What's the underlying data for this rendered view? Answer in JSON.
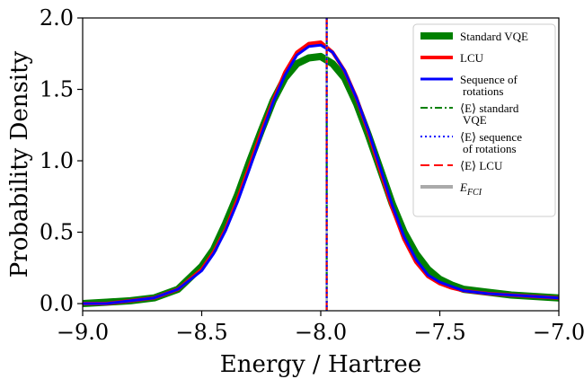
{
  "chart_data": {
    "type": "line",
    "title": "",
    "xlabel": "Energy / Hartree",
    "ylabel": "Probability Density",
    "xlim": [
      -9.0,
      -7.0
    ],
    "ylim": [
      -0.05,
      2.0
    ],
    "x_ticks": [
      -9.0,
      -8.5,
      -8.0,
      -7.5,
      -7.0
    ],
    "x_tick_labels": [
      "−9.0",
      "−8.5",
      "−8.0",
      "−7.5",
      "−7.0"
    ],
    "y_ticks": [
      0.0,
      0.5,
      1.0,
      1.5,
      2.0
    ],
    "y_tick_labels": [
      "0.0",
      "0.5",
      "1.0",
      "1.5",
      "2.0"
    ],
    "grid": false,
    "legend_position": "top-right",
    "x": [
      -9.0,
      -8.9,
      -8.8,
      -8.7,
      -8.6,
      -8.5,
      -8.45,
      -8.4,
      -8.35,
      -8.3,
      -8.25,
      -8.2,
      -8.15,
      -8.1,
      -8.05,
      -8.0,
      -7.95,
      -7.9,
      -7.85,
      -7.8,
      -7.75,
      -7.7,
      -7.65,
      -7.6,
      -7.55,
      -7.5,
      -7.45,
      -7.4,
      -7.3,
      -7.2,
      -7.1,
      -7.0
    ],
    "series": [
      {
        "name": "Standard VQE",
        "color": "#008000",
        "style": "solid",
        "values": [
          0.0,
          0.01,
          0.02,
          0.04,
          0.1,
          0.26,
          0.38,
          0.56,
          0.76,
          0.99,
          1.21,
          1.42,
          1.58,
          1.68,
          1.72,
          1.73,
          1.68,
          1.58,
          1.4,
          1.18,
          0.94,
          0.7,
          0.5,
          0.35,
          0.24,
          0.17,
          0.13,
          0.1,
          0.08,
          0.06,
          0.05,
          0.04
        ]
      },
      {
        "name": "LCU",
        "color": "#ff0000",
        "style": "solid",
        "values": [
          0.0,
          0.0,
          0.02,
          0.04,
          0.1,
          0.24,
          0.36,
          0.52,
          0.73,
          0.96,
          1.2,
          1.42,
          1.62,
          1.76,
          1.82,
          1.83,
          1.76,
          1.63,
          1.44,
          1.2,
          0.93,
          0.67,
          0.45,
          0.29,
          0.19,
          0.14,
          0.11,
          0.09,
          0.07,
          0.06,
          0.05,
          0.04
        ]
      },
      {
        "name": "Sequence of rotations",
        "name_lines": [
          "Sequence of",
          "rotations"
        ],
        "color": "#0000ff",
        "style": "solid",
        "values": [
          0.0,
          0.0,
          0.02,
          0.04,
          0.1,
          0.23,
          0.35,
          0.51,
          0.71,
          0.94,
          1.18,
          1.41,
          1.6,
          1.74,
          1.8,
          1.81,
          1.76,
          1.63,
          1.44,
          1.21,
          0.95,
          0.69,
          0.47,
          0.31,
          0.2,
          0.15,
          0.12,
          0.09,
          0.07,
          0.06,
          0.05,
          0.04
        ]
      }
    ],
    "vlines": [
      {
        "name": "⟨E⟩ standard VQE",
        "lines": [
          "⟨E⟩ standard",
          "VQE"
        ],
        "color": "#008000",
        "style": "dashdot",
        "x": -7.975
      },
      {
        "name": "⟨E⟩ sequence of rotations",
        "lines": [
          "⟨E⟩ sequence",
          "of rotations"
        ],
        "color": "#0000ff",
        "style": "dotted",
        "x": -7.975
      },
      {
        "name": "⟨E⟩ LCU",
        "lines": [
          "⟨E⟩ LCU"
        ],
        "color": "#ff0000",
        "style": "dashed",
        "x": -7.975
      },
      {
        "name": "E_FCI",
        "lines": [
          "E",
          "FCI"
        ],
        "color": "#aaaaaa",
        "style": "solid",
        "x": -7.975
      }
    ]
  }
}
